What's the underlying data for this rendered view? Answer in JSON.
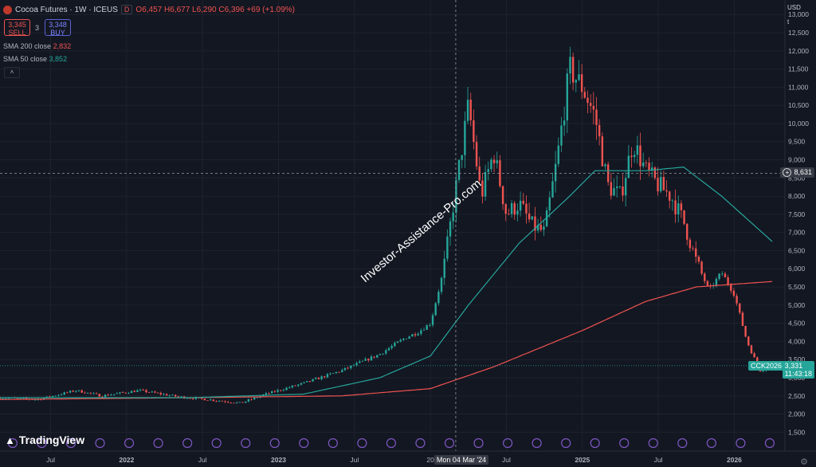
{
  "header": {
    "title": "Cocoa Futures · 1W · ICEUS",
    "flag": "D",
    "ohlc": "O6,457 H6,677 L6,290 C6,396 +69 (+1.09%)"
  },
  "trade": {
    "sell_price": "3,345",
    "sell_label": "SELL",
    "qty": "3",
    "buy_price": "3,348",
    "buy_label": "BUY"
  },
  "indicators": [
    {
      "label": "SMA 200 close",
      "value": "2,832",
      "color": "#ef5350"
    },
    {
      "label": "SMA 50 close",
      "value": "3,852",
      "color": "#26a69a"
    }
  ],
  "currency": "USD",
  "unit": "t",
  "crosshair": {
    "price_label": "8,631",
    "date_label": "Mon 04 Mar '24"
  },
  "last_price": {
    "symbol": "CCK2026",
    "value": "3,331",
    "countdown": "11:43:18"
  },
  "watermark": "Investor-Assistance-Pro.com",
  "branding": "TradingView",
  "colors": {
    "up": "#26a69a",
    "down": "#ef5350",
    "sma200": "#ef5350",
    "sma50": "#26a69a",
    "background": "#131722"
  },
  "chart_data": {
    "type": "candlestick",
    "y_ticks": [
      "13,000",
      "12,500",
      "12,000",
      "11,500",
      "11,000",
      "10,500",
      "10,000",
      "9,500",
      "9,000",
      "8,500",
      "8,000",
      "7,500",
      "7,000",
      "6,500",
      "6,000",
      "5,500",
      "5,000",
      "4,500",
      "4,000",
      "3,500",
      "3,000",
      "2,500",
      "2,000",
      "1,500"
    ],
    "ylim": [
      1200,
      13400
    ],
    "x_ticks": [
      "Jul",
      "2022",
      "Jul",
      "2023",
      "Jul",
      "20",
      "Jul",
      "2025",
      "Jul",
      "2026"
    ],
    "x_tick_dates": [
      "2021-07",
      "2022-01",
      "2022-07",
      "2023-01",
      "2023-07",
      "2024-01",
      "2024-07",
      "2025-01",
      "2025-07",
      "2026-01"
    ],
    "xlim": [
      "2021-03",
      "2026-05"
    ],
    "price_anchors": [
      [
        "2021-03",
        2450
      ],
      [
        "2021-06",
        2400
      ],
      [
        "2021-09",
        2650
      ],
      [
        "2021-11",
        2500
      ],
      [
        "2022-02",
        2650
      ],
      [
        "2022-05",
        2480
      ],
      [
        "2022-08",
        2380
      ],
      [
        "2022-10",
        2300
      ],
      [
        "2022-12",
        2550
      ],
      [
        "2023-03",
        2850
      ],
      [
        "2023-06",
        3200
      ],
      [
        "2023-09",
        3650
      ],
      [
        "2023-11",
        4100
      ],
      [
        "2023-12",
        4250
      ],
      [
        "2024-01",
        4500
      ],
      [
        "2024-02",
        5900
      ],
      [
        "2024-03",
        8200
      ],
      [
        "2024-04",
        10500
      ],
      [
        "2024-05",
        8000
      ],
      [
        "2024-06",
        9200
      ],
      [
        "2024-07",
        7500
      ],
      [
        "2024-08",
        7800
      ],
      [
        "2024-09",
        7200
      ],
      [
        "2024-10",
        7000
      ],
      [
        "2024-11",
        9000
      ],
      [
        "2024-12",
        11500
      ],
      [
        "2025-01",
        11000
      ],
      [
        "2025-02",
        10200
      ],
      [
        "2025-03",
        8300
      ],
      [
        "2025-04",
        8000
      ],
      [
        "2025-05",
        9500
      ],
      [
        "2025-06",
        8700
      ],
      [
        "2025-07",
        8300
      ],
      [
        "2025-08",
        8000
      ],
      [
        "2025-09",
        7300
      ],
      [
        "2025-10",
        6200
      ],
      [
        "2025-11",
        5400
      ],
      [
        "2025-12",
        5900
      ],
      [
        "2026-01",
        5300
      ],
      [
        "2026-02",
        4000
      ],
      [
        "2026-03",
        3200
      ],
      [
        "2026-04",
        3331
      ]
    ],
    "sma200_anchors": [
      [
        "2021-03",
        2400
      ],
      [
        "2022-06",
        2450
      ],
      [
        "2023-06",
        2500
      ],
      [
        "2024-01",
        2700
      ],
      [
        "2024-06",
        3300
      ],
      [
        "2025-01",
        4300
      ],
      [
        "2025-06",
        5100
      ],
      [
        "2025-10",
        5500
      ],
      [
        "2026-04",
        5650
      ]
    ],
    "sma50_anchors": [
      [
        "2021-03",
        2450
      ],
      [
        "2022-06",
        2450
      ],
      [
        "2023-03",
        2550
      ],
      [
        "2023-09",
        3000
      ],
      [
        "2024-01",
        3600
      ],
      [
        "2024-04",
        5000
      ],
      [
        "2024-08",
        6700
      ],
      [
        "2024-12",
        8000
      ],
      [
        "2025-02",
        8700
      ],
      [
        "2025-06",
        8700
      ],
      [
        "2025-09",
        8800
      ],
      [
        "2025-12",
        8000
      ],
      [
        "2026-04",
        6750
      ]
    ]
  }
}
